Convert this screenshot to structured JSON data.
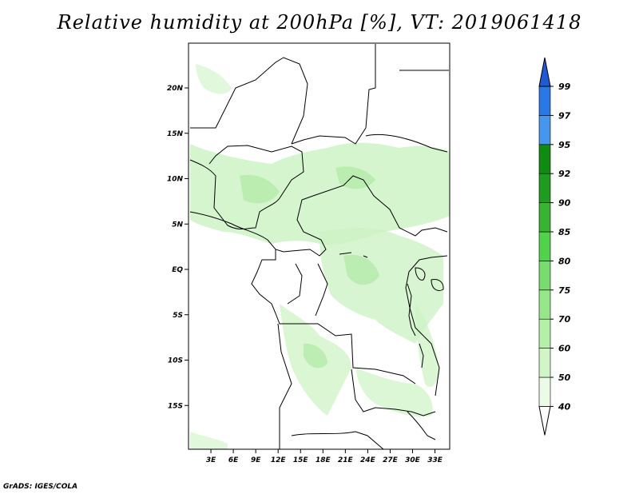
{
  "title": "Relative humidity at 200hPa [%], VT: 2019061418",
  "credit": "GrADS: IGES/COLA",
  "map": {
    "lat_labels": [
      {
        "lat": 20,
        "label": "20N"
      },
      {
        "lat": 15,
        "label": "15N"
      },
      {
        "lat": 10,
        "label": "10N"
      },
      {
        "lat": 5,
        "label": "5N"
      },
      {
        "lat": 0,
        "label": "EQ"
      },
      {
        "lat": -5,
        "label": "5S"
      },
      {
        "lat": -10,
        "label": "10S"
      },
      {
        "lat": -15,
        "label": "15S"
      }
    ],
    "lon_labels": [
      {
        "lon": 3,
        "label": "3E"
      },
      {
        "lon": 6,
        "label": "6E"
      },
      {
        "lon": 9,
        "label": "9E"
      },
      {
        "lon": 12,
        "label": "12E"
      },
      {
        "lon": 15,
        "label": "15E"
      },
      {
        "lon": 18,
        "label": "18E"
      },
      {
        "lon": 21,
        "label": "21E"
      },
      {
        "lon": 24,
        "label": "24E"
      },
      {
        "lon": 27,
        "label": "27E"
      },
      {
        "lon": 30,
        "label": "30E"
      },
      {
        "lon": 33,
        "label": "33E"
      }
    ]
  },
  "colorbar": {
    "levels": [
      {
        "label": "40",
        "color": "#ebfbe6"
      },
      {
        "label": "50",
        "color": "#d2f5c8"
      },
      {
        "label": "60",
        "color": "#b4f0a6"
      },
      {
        "label": "70",
        "color": "#96e68a"
      },
      {
        "label": "75",
        "color": "#78dc6e"
      },
      {
        "label": "80",
        "color": "#50d24a"
      },
      {
        "label": "85",
        "color": "#37b432"
      },
      {
        "label": "90",
        "color": "#1e9c1e"
      },
      {
        "label": "92",
        "color": "#0f8c0f"
      },
      {
        "label": "95",
        "color": "#4696f0"
      },
      {
        "label": "97",
        "color": "#2878e6"
      },
      {
        "label": "99",
        "color": "#1e5ad2"
      }
    ],
    "below_color": "#ffffff"
  }
}
